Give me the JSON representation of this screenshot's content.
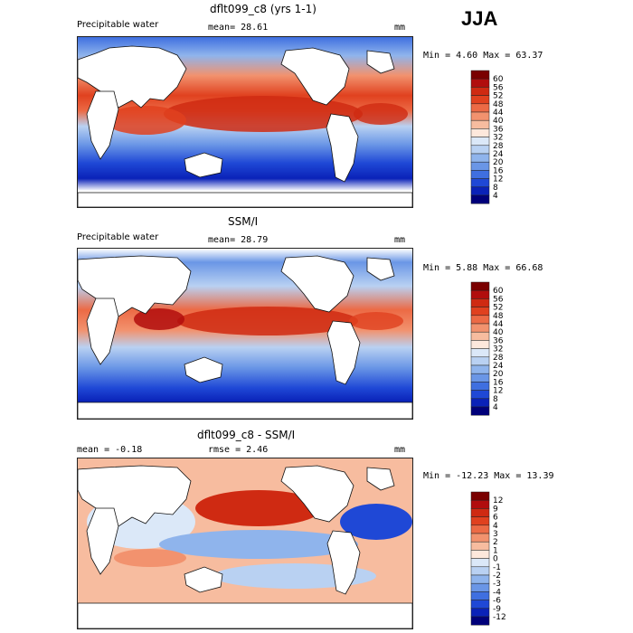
{
  "season": "JJA",
  "panels": [
    {
      "title": "dflt099_c8 (yrs 1-1)",
      "left_label": "Precipitable water",
      "center_label": "mean=  28.61",
      "unit": "mm",
      "minmax": "Min =    4.60 Max =  63.37",
      "colorbar": {
        "labels": [
          "60",
          "56",
          "52",
          "48",
          "44",
          "40",
          "36",
          "32",
          "28",
          "24",
          "20",
          "16",
          "12",
          "8",
          "4"
        ],
        "colors": [
          "#7a0000",
          "#b10d0d",
          "#cf2a12",
          "#e0411f",
          "#ec6a45",
          "#f2926e",
          "#f7bc9f",
          "#fde8dc",
          "#dbe8f8",
          "#b9d1f2",
          "#8fb4ec",
          "#6a96e6",
          "#3f6fe0",
          "#1f48d6",
          "#0a22b8",
          "#00007a"
        ]
      }
    },
    {
      "title": "SSM/I",
      "left_label": "Precipitable water",
      "center_label": "mean=  28.79",
      "unit": "mm",
      "minmax": "Min =    5.88 Max =  66.68",
      "colorbar": {
        "labels": [
          "60",
          "56",
          "52",
          "48",
          "44",
          "40",
          "36",
          "32",
          "28",
          "24",
          "20",
          "16",
          "12",
          "8",
          "4"
        ],
        "colors": [
          "#7a0000",
          "#b10d0d",
          "#cf2a12",
          "#e0411f",
          "#ec6a45",
          "#f2926e",
          "#f7bc9f",
          "#fde8dc",
          "#dbe8f8",
          "#b9d1f2",
          "#8fb4ec",
          "#6a96e6",
          "#3f6fe0",
          "#1f48d6",
          "#0a22b8",
          "#00007a"
        ]
      }
    },
    {
      "title": "dflt099_c8 - SSM/I",
      "left_label": "mean =   -0.18",
      "center_label": "rmse =    2.46",
      "unit": "mm",
      "minmax": "Min = -12.23 Max =  13.39",
      "colorbar": {
        "labels": [
          "12",
          "9",
          "6",
          "4",
          "3",
          "2",
          "1",
          "0",
          "-1",
          "-2",
          "-3",
          "-4",
          "-6",
          "-9",
          "-12"
        ],
        "colors": [
          "#7a0000",
          "#b10d0d",
          "#cf2a12",
          "#e0411f",
          "#ec6a45",
          "#f2926e",
          "#f7bc9f",
          "#fde8dc",
          "#dbe8f8",
          "#b9d1f2",
          "#8fb4ec",
          "#6a96e6",
          "#3f6fe0",
          "#1f48d6",
          "#0a22b8",
          "#00007a"
        ]
      }
    }
  ]
}
